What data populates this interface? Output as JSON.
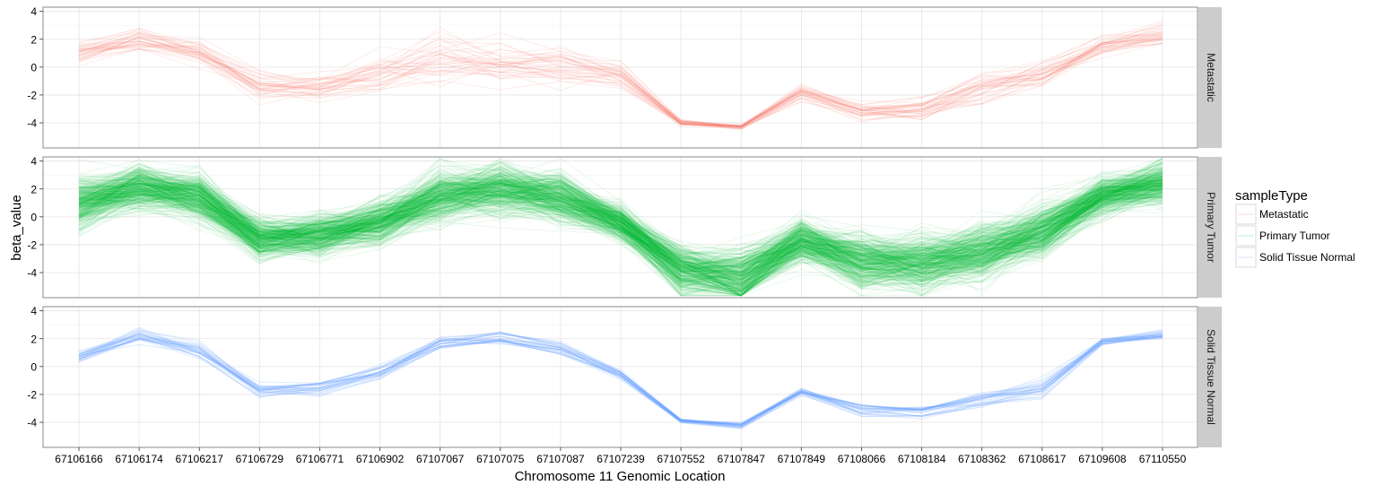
{
  "chart_data": {
    "type": "line",
    "xlabel": "Chromosome 11 Genomic Location",
    "ylabel": "beta_value",
    "ylim": [
      -5.8,
      4.3
    ],
    "yticks": [
      -4,
      -2,
      0,
      2,
      4
    ],
    "ytick_labels": [
      "-4",
      "-2",
      "0",
      "2",
      "4"
    ],
    "categories": [
      "67106166",
      "67106174",
      "67106217",
      "67106729",
      "67106771",
      "67106902",
      "67107067",
      "67107075",
      "67107087",
      "67107239",
      "67107552",
      "67107847",
      "67107849",
      "67108066",
      "67108184",
      "67108362",
      "67108617",
      "67109608",
      "67110550"
    ],
    "grid": true,
    "legend": {
      "title": "sampleType",
      "position": "right",
      "entries": [
        "Metastatic",
        "Primary Tumor",
        "Solid Tissue Normal"
      ]
    },
    "facets": [
      {
        "label": "Metastatic",
        "color": "#F8766D",
        "line_opacity": 0.14,
        "line_count": 40,
        "typical_profile": [
          0.9,
          2.0,
          1.0,
          -1.3,
          -1.5,
          -0.6,
          0.6,
          0.4,
          0.0,
          -0.6,
          -4.0,
          -4.3,
          -1.8,
          -3.2,
          -3.0,
          -1.5,
          -0.5,
          1.6,
          2.4
        ],
        "spread": [
          0.5,
          0.5,
          0.5,
          0.6,
          0.6,
          0.8,
          1.0,
          1.0,
          0.9,
          0.6,
          0.15,
          0.12,
          0.3,
          0.4,
          0.5,
          0.7,
          0.6,
          0.4,
          0.5
        ]
      },
      {
        "label": "Primary Tumor",
        "color": "#00BA38",
        "line_opacity": 0.09,
        "line_count": 400,
        "typical_profile": [
          1.0,
          2.2,
          1.5,
          -1.6,
          -1.3,
          -0.3,
          1.5,
          2.0,
          1.4,
          -0.4,
          -3.8,
          -4.3,
          -1.7,
          -3.2,
          -3.3,
          -2.5,
          -1.0,
          1.5,
          2.5
        ],
        "spread": [
          1.1,
          1.0,
          1.0,
          0.8,
          0.9,
          0.9,
          1.1,
          1.1,
          1.0,
          0.7,
          1.0,
          1.2,
          0.9,
          1.1,
          1.2,
          1.2,
          1.1,
          0.8,
          0.9
        ]
      },
      {
        "label": "Solid Tissue Normal",
        "color": "#619CFF",
        "line_opacity": 0.2,
        "line_count": 30,
        "typical_profile": [
          0.7,
          2.2,
          1.3,
          -1.7,
          -1.5,
          -0.4,
          1.7,
          2.1,
          1.3,
          -0.5,
          -3.9,
          -4.2,
          -1.8,
          -3.1,
          -3.2,
          -2.3,
          -1.5,
          1.8,
          2.3
        ],
        "spread": [
          0.3,
          0.3,
          0.4,
          0.3,
          0.3,
          0.3,
          0.3,
          0.3,
          0.3,
          0.2,
          0.1,
          0.15,
          0.2,
          0.3,
          0.3,
          0.4,
          0.4,
          0.2,
          0.2
        ]
      }
    ]
  }
}
